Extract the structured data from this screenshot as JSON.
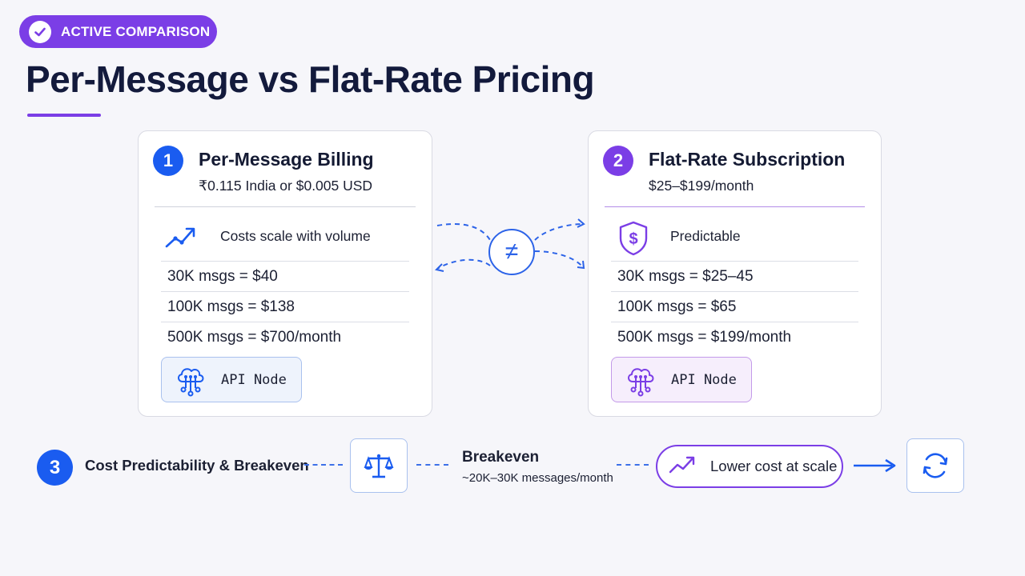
{
  "badge": {
    "label": "ACTIVE COMPARISON",
    "icon": "check-icon"
  },
  "title": "Per-Message vs Flat-Rate Pricing",
  "colors": {
    "accent_purple": "#7b3ee6",
    "accent_blue": "#1a5cf0"
  },
  "left_card": {
    "number": "1",
    "title": "Per-Message Billing",
    "subtitle": "₹0.115 India or $0.005 USD",
    "feature_icon": "trend-up-icon",
    "feature": "Costs scale with volume",
    "rows": [
      "30K msgs = $40",
      "100K msgs = $138",
      "500K msgs = $700/month"
    ],
    "node_icon": "cloud-network-icon",
    "node_label": "API Node"
  },
  "right_card": {
    "number": "2",
    "title": "Flat-Rate Subscription",
    "subtitle": "$25–$199/month",
    "feature_icon": "shield-dollar-icon",
    "feature": "Predictable",
    "rows": [
      "30K msgs = $25–45",
      "100K msgs = $65",
      "500K msgs = $199/month"
    ],
    "node_icon": "cloud-network-icon",
    "node_label": "API Node"
  },
  "compare_symbol": "≠",
  "bottom": {
    "number": "3",
    "label": "Cost Predictability & Breakeven",
    "scale_icon": "balance-scale-icon",
    "breakeven_title": "Breakeven",
    "breakeven_sub": "~20K–30K messages/month",
    "pill_icon": "trend-up-icon",
    "pill_label": "Lower cost at scale",
    "refresh_icon": "refresh-icon"
  }
}
